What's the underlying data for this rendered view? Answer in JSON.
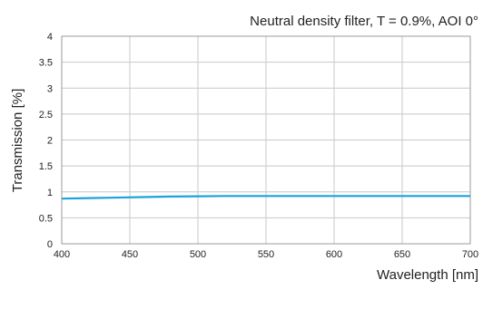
{
  "chart_data": {
    "type": "line",
    "title": "Neutral density filter, T = 0.9%, AOI 0°",
    "xlabel": "Wavelength [nm]",
    "ylabel": "Transmission [%]",
    "xlim": [
      400,
      700
    ],
    "ylim": [
      0,
      4
    ],
    "xticks": [
      400,
      450,
      500,
      550,
      600,
      650,
      700
    ],
    "yticks": [
      0,
      0.5,
      1,
      1.5,
      2,
      2.5,
      3,
      3.5,
      4
    ],
    "xtick_labels": [
      "400",
      "450",
      "500",
      "550",
      "600",
      "650",
      "700"
    ],
    "ytick_labels": [
      "0",
      "0.5",
      "1",
      "1.5",
      "2",
      "2.5",
      "3",
      "3.5",
      "4"
    ],
    "grid": true,
    "series": [
      {
        "color": "#1aa3dc",
        "x": [
          400,
          420,
          440,
          460,
          480,
          500,
          520,
          550,
          600,
          650,
          700
        ],
        "y": [
          0.87,
          0.88,
          0.89,
          0.9,
          0.91,
          0.915,
          0.92,
          0.92,
          0.92,
          0.92,
          0.92
        ]
      }
    ]
  }
}
